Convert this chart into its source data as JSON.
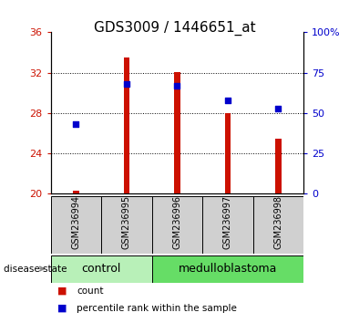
{
  "title": "GDS3009 / 1446651_at",
  "samples": [
    "GSM236994",
    "GSM236995",
    "GSM236996",
    "GSM236997",
    "GSM236998"
  ],
  "counts": [
    20.3,
    33.5,
    32.1,
    28.0,
    25.5
  ],
  "percentiles": [
    43.0,
    68.0,
    67.0,
    58.0,
    53.0
  ],
  "ylim_left": [
    20,
    36
  ],
  "ylim_right": [
    0,
    100
  ],
  "yticks_left": [
    20,
    24,
    28,
    32,
    36
  ],
  "yticks_right": [
    0,
    25,
    50,
    75,
    100
  ],
  "yticklabels_right": [
    "0",
    "25",
    "50",
    "75",
    "100%"
  ],
  "bar_color": "#cc1100",
  "dot_color": "#0000cc",
  "bar_width": 0.12,
  "background_label": "#d0d0d0",
  "left_tick_color": "#cc1100",
  "right_tick_color": "#0000cc",
  "title_fontsize": 11,
  "tick_fontsize": 8,
  "label_fontsize": 9,
  "sample_fontsize": 7,
  "legend_fontsize": 7.5,
  "control_color": "#b8f0b8",
  "medulloblastoma_color": "#66dd66"
}
